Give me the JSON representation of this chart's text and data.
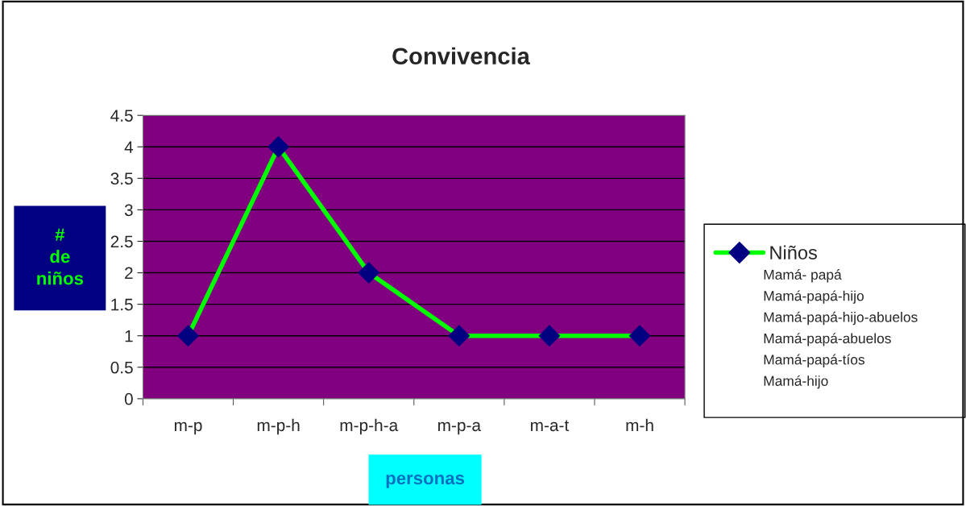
{
  "chart_data": {
    "type": "line",
    "title": "Convivencia",
    "xlabel": "personas",
    "ylabel": "# de niños",
    "categories": [
      "m-p",
      "m-p-h",
      "m-p-h-a",
      "m-p-a",
      "m-a-t",
      "m-h"
    ],
    "series": [
      {
        "name": "Niños",
        "color": "#00ff00",
        "values": [
          1,
          4,
          2,
          1,
          1,
          1
        ]
      }
    ],
    "ylim": [
      0,
      4.5
    ],
    "yticks": [
      0,
      0.5,
      1,
      1.5,
      2,
      2.5,
      3,
      3.5,
      4,
      4.5
    ],
    "grid": "y",
    "legend": "right",
    "marker": "diamond",
    "line_style": "solid",
    "annotations": [
      "Mamá- papá",
      "Mamá-papá-hijo",
      "Mamá-papá-hijo-abuelos",
      "Mamá-papá-abuelos",
      "Mamá-papá-tíos",
      "Mamá-hijo"
    ]
  }
}
